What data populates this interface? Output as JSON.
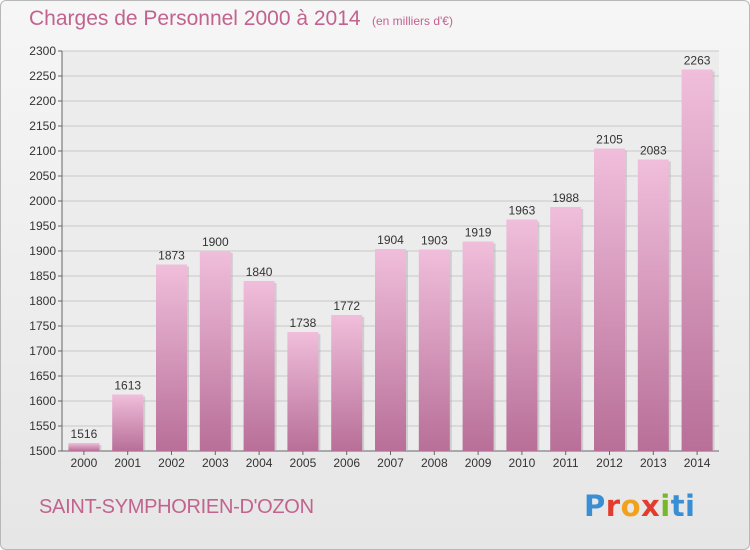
{
  "header": {
    "title": "Charges de Personnel 2000 à 2014",
    "subtitle": "(en milliers d'€)"
  },
  "footer": {
    "commune": "SAINT-SYMPHORIEN-D'OZON",
    "logo_letters": [
      "P",
      "r",
      "o",
      "x",
      "i",
      "ti"
    ]
  },
  "colors": {
    "accent": "#c2638f",
    "bar_light": "#f0bedb",
    "bar_dark": "#b86f98",
    "grid": "#c8c8c8"
  },
  "chart_data": {
    "type": "bar",
    "title": "Charges de Personnel 2000 à 2014",
    "subtitle": "(en milliers d'€)",
    "categories": [
      "2000",
      "2001",
      "2002",
      "2003",
      "2004",
      "2005",
      "2006",
      "2007",
      "2008",
      "2009",
      "2010",
      "2011",
      "2012",
      "2013",
      "2014"
    ],
    "values": [
      1516,
      1613,
      1873,
      1900,
      1840,
      1738,
      1772,
      1904,
      1903,
      1919,
      1963,
      1988,
      2105,
      2083,
      2263
    ],
    "ylim": [
      1500,
      2300
    ],
    "yticks": [
      1500,
      1550,
      1600,
      1650,
      1700,
      1750,
      1800,
      1850,
      1900,
      1950,
      2000,
      2050,
      2100,
      2150,
      2200,
      2250,
      2300
    ],
    "grid": true,
    "xlabel": "",
    "ylabel": ""
  }
}
